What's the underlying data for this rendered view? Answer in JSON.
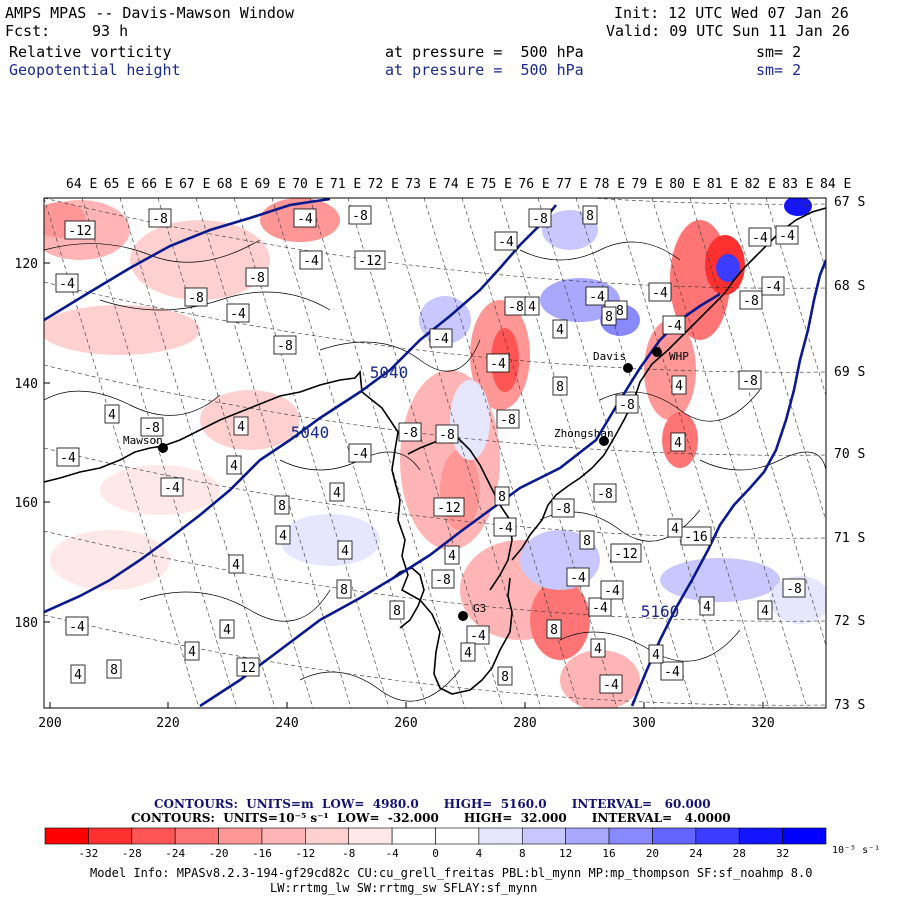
{
  "header": {
    "title": "AMPS MPAS -- Davis-Mawson Window",
    "fcst_label": "Fcst:",
    "fcst_value": "93 h",
    "init": "Init: 12 UTC Wed 07 Jan 26",
    "valid": "Valid: 09 UTC Sun 11 Jan 26",
    "field1": "Relative vorticity",
    "field1_level": "at pressure =  500 hPa",
    "field1_sm": "sm= 2",
    "field2": "Geopotential height",
    "field2_level": "at pressure =  500 hPa",
    "field2_sm": "sm= 2"
  },
  "map": {
    "lon_labels": [
      "64 E",
      "65 E",
      "66 E",
      "67 E",
      "68 E",
      "69 E",
      "70 E",
      "71 E",
      "72 E",
      "73 E",
      "74 E",
      "75 E",
      "76 E",
      "77 E",
      "78 E",
      "79 E",
      "80 E",
      "81 E",
      "82 E",
      "83 E",
      "84 E"
    ],
    "lat_labels": [
      "67 S",
      "68 S",
      "69 S",
      "70 S",
      "71 S",
      "72 S",
      "73 S"
    ],
    "x_ticks": [
      "200",
      "220",
      "240",
      "260",
      "280",
      "300",
      "320"
    ],
    "y_ticks": [
      "120",
      "140",
      "160",
      "180"
    ],
    "stations": [
      "Mawson",
      "Davis",
      "Zhongshan",
      "WHP",
      "G3"
    ],
    "height_labels": [
      "5040",
      "5040",
      "5160"
    ],
    "vort_labels": [
      "-12",
      "-8",
      "-4",
      "-8",
      "-4",
      "-8",
      "-8",
      "-4",
      "-4",
      "-12",
      "-8",
      "-4",
      "4",
      "-8",
      "4",
      "-4",
      "-4",
      "-4",
      "-8",
      "-8",
      "8",
      "-12",
      "4",
      "-4",
      "8",
      "-8",
      "-4",
      "-8",
      "4",
      "-4",
      "-8",
      "-4",
      "-4",
      "-8",
      "4",
      "8",
      "-8",
      "-8",
      "-8",
      "4",
      "8",
      "-12",
      "-4",
      "-16",
      "4",
      "-8",
      "-4",
      "4",
      "4",
      "-8",
      "8",
      "4",
      "-4",
      "8",
      "-4",
      "4",
      "4",
      "8",
      "-8",
      "8",
      "4",
      "12",
      "8",
      "-4",
      "4",
      "4",
      "-4",
      "4",
      "-4",
      "-4",
      "-4",
      "-4",
      "8",
      "4",
      "4",
      "8",
      "-8",
      "-4",
      "4",
      "4",
      "4",
      "-4"
    ]
  },
  "contour_info": {
    "line1": "CONTOURS:  UNITS=m  LOW=  4980.0      HIGH=  5160.0      INTERVAL=   60.000",
    "line2": "CONTOURS:  UNITS=10⁻⁵ s⁻¹  LOW=  -32.000      HIGH=  32.000      INTERVAL=   4.0000"
  },
  "colorbar": {
    "labels": [
      "-32",
      "-28",
      "-24",
      "-20",
      "-16",
      "-12",
      "-8",
      "-4",
      "0",
      "4",
      "8",
      "12",
      "16",
      "20",
      "24",
      "28",
      "32"
    ],
    "unit": "10⁻⁵ s⁻¹",
    "colors": [
      "#ff0000",
      "#ff3030",
      "#ff5555",
      "#ff7575",
      "#ff9797",
      "#ffb5b5",
      "#ffd0d0",
      "#ffe8e8",
      "#ffffff",
      "#ffffff",
      "#e6e6ff",
      "#c8c8ff",
      "#a8a8ff",
      "#8888ff",
      "#6464ff",
      "#3c3cff",
      "#1414ff",
      "#0000ff"
    ]
  },
  "footer": {
    "line1": "Model Info: MPASv8.2.3-194-gf29cd82c CU:cu_grell_freitas PBL:bl_mynn MP:mp_thompson SF:sf_noahmp 8.0",
    "line2": "LW:rrtmg_lw SW:rrtmg_sw SFLAY:sf_mynn"
  }
}
